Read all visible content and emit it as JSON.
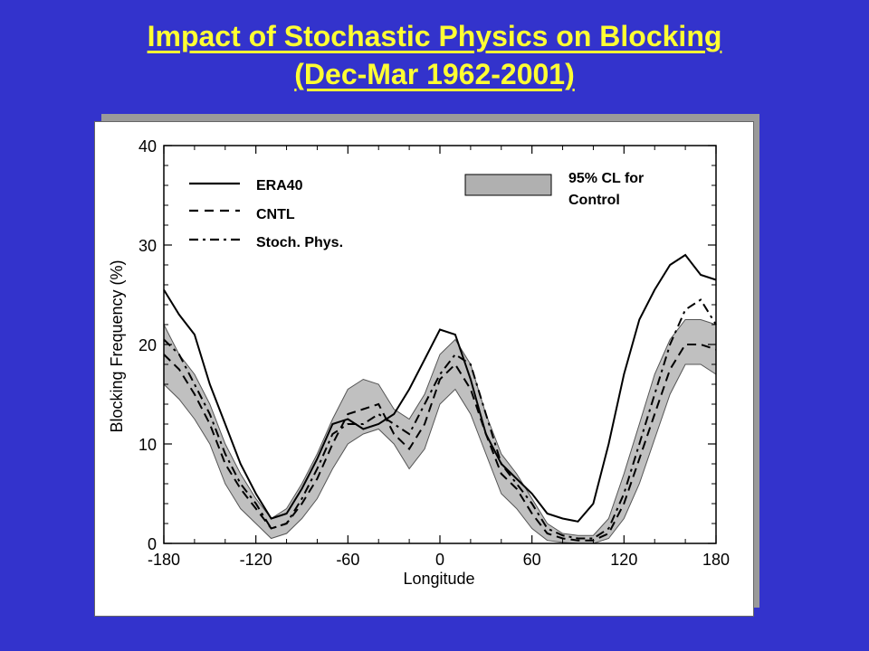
{
  "slide": {
    "title_line1": "Impact of Stochastic Physics on Blocking",
    "title_line2": "(Dec-Mar 1962-2001)",
    "background": "#3333cc",
    "title_color": "#ffff33"
  },
  "chart_data": {
    "type": "line",
    "xlabel": "Longitude",
    "ylabel": "Blocking Frequency (%)",
    "xlim": [
      -180,
      180
    ],
    "ylim": [
      0,
      40
    ],
    "xticks": [
      -180,
      -120,
      -60,
      0,
      60,
      120,
      180
    ],
    "yticks": [
      0,
      10,
      20,
      30,
      40
    ],
    "legend": {
      "position": "top-left",
      "entries": [
        {
          "label": "ERA40",
          "style": "solid"
        },
        {
          "label": "CNTL",
          "style": "dashed"
        },
        {
          "label": "Stoch. Phys.",
          "style": "dash-dot"
        }
      ],
      "band_label": "95% CL for Control",
      "band_label_lines": [
        "95% CL for",
        "Control"
      ],
      "band_position": "top-right"
    },
    "x": [
      -180,
      -170,
      -160,
      -150,
      -140,
      -130,
      -120,
      -110,
      -100,
      -90,
      -80,
      -70,
      -60,
      -50,
      -40,
      -30,
      -20,
      -10,
      0,
      10,
      20,
      30,
      40,
      50,
      60,
      70,
      80,
      90,
      100,
      110,
      120,
      130,
      140,
      150,
      160,
      170,
      180
    ],
    "series": [
      {
        "name": "ERA40",
        "style": "solid",
        "values": [
          25.5,
          23,
          21,
          16,
          12,
          8,
          5,
          2.5,
          3,
          5.5,
          8.5,
          12,
          12.5,
          11.5,
          12,
          13,
          15.5,
          18.5,
          21.5,
          21,
          16.5,
          11,
          8,
          6.5,
          5,
          3,
          2.5,
          2.2,
          4,
          10,
          17,
          22.5,
          25.5,
          28,
          29,
          27,
          26.5
        ]
      },
      {
        "name": "CNTL",
        "style": "dashed",
        "values": [
          19,
          17.5,
          15,
          12,
          8,
          5.5,
          3.5,
          1.5,
          2,
          4,
          6.5,
          10,
          13,
          13.5,
          14,
          11,
          9.5,
          12,
          16.5,
          18,
          15.5,
          11,
          7,
          5.5,
          3,
          1,
          0.5,
          0.3,
          0.3,
          1,
          4,
          8.5,
          13,
          17.5,
          20,
          20,
          19.5
        ]
      },
      {
        "name": "Stoch. Phys.",
        "style": "dash-dot",
        "values": [
          20.5,
          19,
          16,
          13,
          9,
          6,
          4,
          1.5,
          2,
          4.5,
          7.5,
          11,
          12,
          12,
          13,
          12,
          11,
          14,
          17,
          19,
          18,
          13,
          8,
          6,
          4,
          1.5,
          0.8,
          0.5,
          0.5,
          1.5,
          5,
          10,
          15,
          20,
          23.5,
          24.5,
          22
        ]
      }
    ],
    "band": {
      "name": "95% CL for Control",
      "color": "#c0c0c0",
      "upper": [
        22,
        19,
        17,
        14,
        10,
        7,
        4.5,
        2.5,
        3.5,
        6,
        9,
        12.5,
        15.5,
        16.5,
        16,
        13.5,
        12.5,
        15,
        19,
        20.5,
        18,
        13,
        9,
        7,
        4.5,
        2,
        1,
        0.8,
        0.8,
        2.5,
        7,
        12,
        17,
        20.5,
        22.5,
        22.5,
        22
      ],
      "lower": [
        16,
        14.5,
        12.5,
        10,
        6,
        3.5,
        2,
        0.5,
        1,
        2.5,
        4.5,
        7.5,
        10,
        11,
        11.5,
        10,
        7.5,
        9.5,
        14,
        15.5,
        13,
        9,
        5,
        3.5,
        1.5,
        0.3,
        0.1,
        0,
        0,
        0.5,
        2.5,
        6,
        10.5,
        15,
        18,
        18,
        17
      ]
    }
  }
}
